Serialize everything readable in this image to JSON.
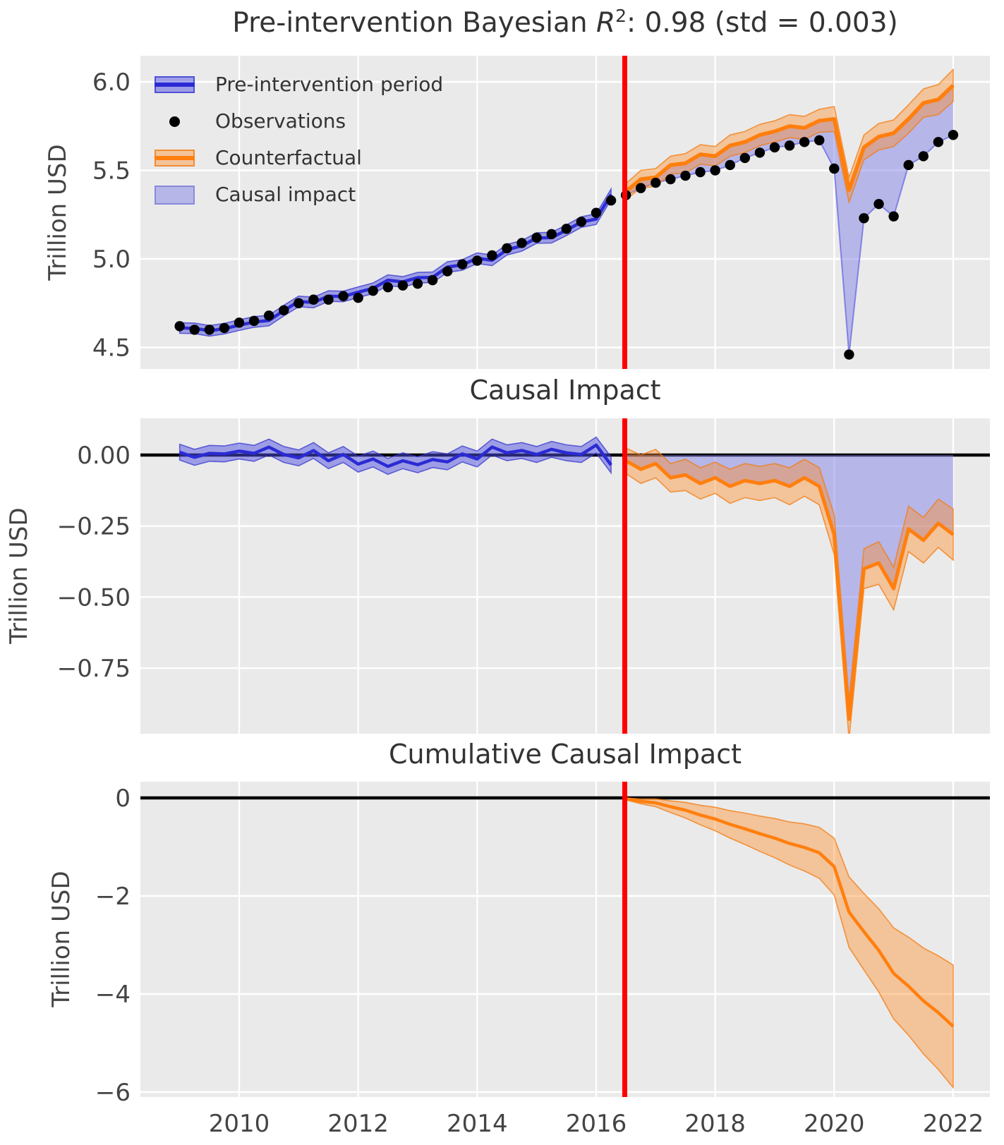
{
  "titles": {
    "panel1": {
      "prefix": "Pre-intervention Bayesian ",
      "r": "R",
      "sup": "2",
      "suffix": ": 0.98 (std = 0.003)"
    },
    "panel2": "Causal Impact",
    "panel3": "Cumulative Causal Impact"
  },
  "legend": {
    "items": [
      {
        "label": "Pre-intervention period",
        "swatch": "blue-band"
      },
      {
        "label": "Observations",
        "swatch": "black-dot"
      },
      {
        "label": "Counterfactual",
        "swatch": "orange-band"
      },
      {
        "label": "Causal impact",
        "swatch": "lightblue-fill"
      }
    ],
    "position": "upper left"
  },
  "colors": {
    "blue_line": "#2b2bd4",
    "blue_band": "rgba(80,80,225,0.50)",
    "blue_band_edge": "rgba(47,47,205,0.70)",
    "impact_fill": "rgba(125,125,230,0.48)",
    "impact_fill_edge": "rgba(110,110,228,0.80)",
    "orange_line": "#ff7f0e",
    "orange_band": "rgba(255,140,40,0.42)",
    "orange_band_edge": "rgba(244,121,12,0.75)",
    "observation": "#000000",
    "intervention_line": "#ff0000",
    "zero_line": "#000000",
    "plot_bg": "#eaeaea",
    "grid": "#ffffff",
    "tick_text": "#444444",
    "title_text": "#333333"
  },
  "x_axis": {
    "tick_values": [
      2010,
      2012,
      2014,
      2016,
      2018,
      2020,
      2022
    ],
    "tick_labels": [
      "2010",
      "2012",
      "2014",
      "2016",
      "2018",
      "2020",
      "2022"
    ],
    "intervention_x": 2016.48
  },
  "chart_data": [
    {
      "id": "model-fit",
      "type": "line",
      "title": "Pre-intervention Bayesian R2: 0.98 (std = 0.003)",
      "ylabel": "Trillion USD",
      "ytick_values": [
        6.0,
        5.5,
        5.0,
        4.5
      ],
      "ytick_labels": [
        "6.0",
        "5.5",
        "5.0",
        "4.5"
      ],
      "ylim": [
        4.38,
        6.15
      ],
      "xlim": [
        2008.34,
        2022.62
      ],
      "grid": true,
      "legend_position": "upper left",
      "x_pre": [
        2009.0,
        2009.25,
        2009.5,
        2009.75,
        2010.0,
        2010.25,
        2010.5,
        2010.75,
        2011.0,
        2011.25,
        2011.5,
        2011.75,
        2012.0,
        2012.25,
        2012.5,
        2012.75,
        2013.0,
        2013.25,
        2013.5,
        2013.75,
        2014.0,
        2014.25,
        2014.5,
        2014.75,
        2015.0,
        2015.25,
        2015.5,
        2015.75,
        2016.0,
        2016.25
      ],
      "observations_pre": [
        4.62,
        4.6,
        4.6,
        4.61,
        4.64,
        4.65,
        4.68,
        4.71,
        4.75,
        4.77,
        4.77,
        4.79,
        4.78,
        4.82,
        4.84,
        4.85,
        4.86,
        4.88,
        4.93,
        4.97,
        4.99,
        5.02,
        5.06,
        5.09,
        5.12,
        5.14,
        5.17,
        5.21,
        5.26,
        5.33
      ],
      "pre_intervention_mean": [
        4.61,
        4.608,
        4.594,
        4.606,
        4.626,
        4.644,
        4.652,
        4.708,
        4.76,
        4.754,
        4.79,
        4.788,
        4.812,
        4.834,
        4.88,
        4.87,
        4.894,
        4.896,
        4.954,
        4.966,
        5.004,
        4.992,
        5.052,
        5.074,
        5.118,
        5.12,
        5.162,
        5.208,
        5.225,
        5.365
      ],
      "pre_band_halfwidth": 0.03,
      "x_post": [
        2016.5,
        2016.75,
        2017.0,
        2017.25,
        2017.5,
        2017.75,
        2018.0,
        2018.25,
        2018.5,
        2018.75,
        2019.0,
        2019.25,
        2019.5,
        2019.75,
        2020.0,
        2020.25,
        2020.5,
        2020.75,
        2021.0,
        2021.25,
        2021.5,
        2021.75,
        2022.0
      ],
      "observations_post": [
        5.36,
        5.4,
        5.43,
        5.45,
        5.47,
        5.49,
        5.5,
        5.53,
        5.57,
        5.6,
        5.63,
        5.64,
        5.66,
        5.67,
        5.51,
        4.46,
        5.23,
        5.31,
        5.24,
        5.53,
        5.58,
        5.66,
        5.7
      ],
      "counterfactual_mean": [
        5.38,
        5.45,
        5.46,
        5.53,
        5.54,
        5.59,
        5.58,
        5.64,
        5.66,
        5.7,
        5.72,
        5.75,
        5.74,
        5.78,
        5.79,
        5.39,
        5.63,
        5.69,
        5.71,
        5.79,
        5.88,
        5.9,
        5.98
      ],
      "counterfactual_band_halfwidth": [
        0.045,
        0.05,
        0.05,
        0.05,
        0.055,
        0.055,
        0.055,
        0.06,
        0.06,
        0.06,
        0.06,
        0.065,
        0.065,
        0.065,
        0.07,
        0.07,
        0.07,
        0.075,
        0.075,
        0.08,
        0.08,
        0.085,
        0.09
      ]
    },
    {
      "id": "causal-impact",
      "type": "line",
      "title": "Causal Impact",
      "ylabel": "Trillion USD",
      "ytick_values": [
        0.0,
        -0.25,
        -0.5,
        -0.75
      ],
      "ytick_labels": [
        "0.00",
        "−0.25",
        "−0.50",
        "−0.75"
      ],
      "ylim": [
        -0.98,
        0.13
      ],
      "grid": true,
      "x_pre": [
        2009.0,
        2009.25,
        2009.5,
        2009.75,
        2010.0,
        2010.25,
        2010.5,
        2010.75,
        2011.0,
        2011.25,
        2011.5,
        2011.75,
        2012.0,
        2012.25,
        2012.5,
        2012.75,
        2013.0,
        2013.25,
        2013.5,
        2013.75,
        2014.0,
        2014.25,
        2014.5,
        2014.75,
        2015.0,
        2015.25,
        2015.5,
        2015.75,
        2016.0,
        2016.25
      ],
      "impact_pre": [
        0.01,
        -0.008,
        0.006,
        0.004,
        0.014,
        0.006,
        0.028,
        0.002,
        -0.01,
        0.016,
        -0.02,
        0.002,
        -0.032,
        -0.014,
        -0.04,
        -0.02,
        -0.034,
        -0.016,
        -0.024,
        0.004,
        -0.014,
        0.028,
        0.008,
        0.016,
        0.002,
        0.02,
        0.008,
        0.002,
        0.035,
        -0.035
      ],
      "pre_band_halfwidth": 0.028,
      "x_post": [
        2016.5,
        2016.75,
        2017.0,
        2017.25,
        2017.5,
        2017.75,
        2018.0,
        2018.25,
        2018.5,
        2018.75,
        2019.0,
        2019.25,
        2019.5,
        2019.75,
        2020.0,
        2020.25,
        2020.5,
        2020.75,
        2021.0,
        2021.25,
        2021.5,
        2021.75,
        2022.0
      ],
      "impact_post": [
        -0.02,
        -0.05,
        -0.03,
        -0.08,
        -0.07,
        -0.1,
        -0.08,
        -0.11,
        -0.09,
        -0.1,
        -0.09,
        -0.11,
        -0.08,
        -0.11,
        -0.28,
        -0.93,
        -0.4,
        -0.38,
        -0.47,
        -0.26,
        -0.3,
        -0.24,
        -0.28
      ],
      "post_band_halfwidth": [
        0.045,
        0.05,
        0.05,
        0.05,
        0.055,
        0.055,
        0.055,
        0.06,
        0.06,
        0.06,
        0.06,
        0.065,
        0.065,
        0.065,
        0.07,
        0.07,
        0.07,
        0.075,
        0.075,
        0.08,
        0.08,
        0.085,
        0.09
      ]
    },
    {
      "id": "cumulative-causal-impact",
      "type": "line",
      "title": "Cumulative Causal Impact",
      "ylabel": "Trillion USD",
      "ytick_values": [
        0,
        -2,
        -4,
        -6
      ],
      "ytick_labels": [
        "0",
        "−2",
        "−4",
        "−6"
      ],
      "ylim": [
        -6.1,
        0.33
      ],
      "grid": true,
      "x_post": [
        2016.5,
        2016.75,
        2017.0,
        2017.25,
        2017.5,
        2017.75,
        2018.0,
        2018.25,
        2018.5,
        2018.75,
        2019.0,
        2019.25,
        2019.5,
        2019.75,
        2020.0,
        2020.25,
        2020.5,
        2020.75,
        2021.0,
        2021.25,
        2021.5,
        2021.75,
        2022.0
      ],
      "cumulative_mean": [
        -0.02,
        -0.07,
        -0.1,
        -0.18,
        -0.25,
        -0.35,
        -0.43,
        -0.54,
        -0.63,
        -0.73,
        -0.82,
        -0.93,
        -1.01,
        -1.12,
        -1.4,
        -2.33,
        -2.73,
        -3.11,
        -3.58,
        -3.84,
        -4.14,
        -4.38,
        -4.66
      ],
      "cumulative_band_halfwidth": [
        0.02,
        0.05,
        0.08,
        0.12,
        0.16,
        0.2,
        0.24,
        0.28,
        0.32,
        0.36,
        0.4,
        0.44,
        0.48,
        0.52,
        0.58,
        0.72,
        0.78,
        0.85,
        0.93,
        1.0,
        1.08,
        1.16,
        1.25
      ]
    }
  ]
}
